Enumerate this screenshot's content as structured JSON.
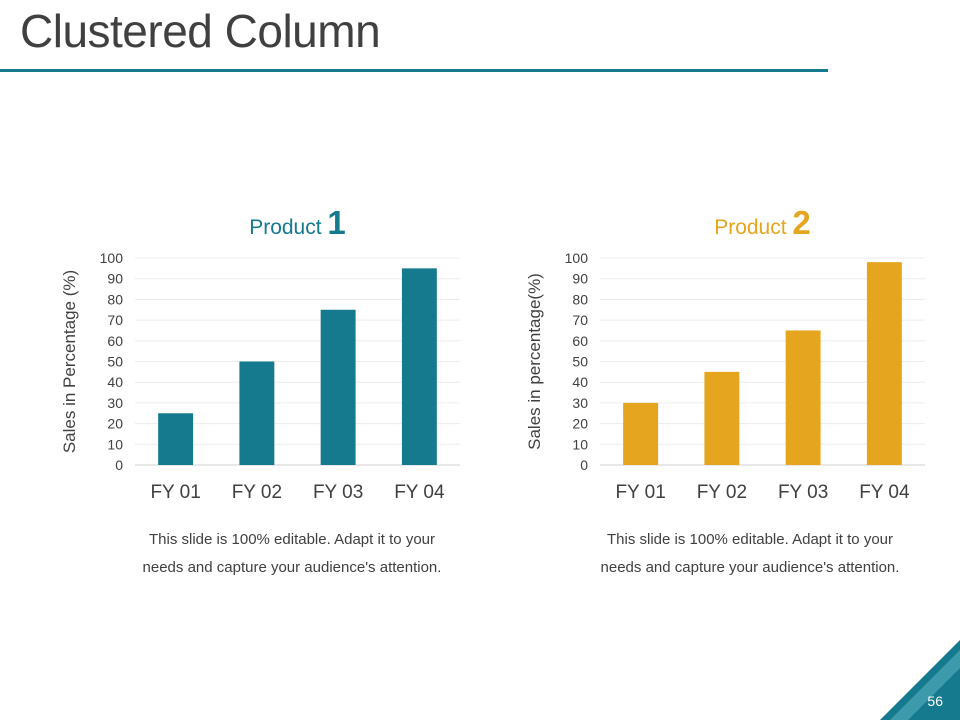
{
  "slide": {
    "title": "Clustered Column",
    "page_number": "56",
    "colors": {
      "accent": "#167a8f",
      "secondary": "#e5a51e",
      "text": "#404040"
    }
  },
  "chart_data": [
    {
      "type": "bar",
      "title_text": "Product",
      "title_number": "1",
      "color": "#167a8f",
      "categories": [
        "FY 01",
        "FY 02",
        "FY 03",
        "FY 04"
      ],
      "values": [
        25,
        50,
        75,
        95
      ],
      "ylabel": "Sales in Percentage (%)",
      "ylim": [
        0,
        100
      ],
      "yticks": [
        0,
        10,
        20,
        30,
        40,
        50,
        60,
        70,
        80,
        90,
        100
      ],
      "grid": true
    },
    {
      "type": "bar",
      "title_text": "Product",
      "title_number": "2",
      "color": "#e5a51e",
      "categories": [
        "FY 01",
        "FY 02",
        "FY 03",
        "FY 04"
      ],
      "values": [
        30,
        45,
        65,
        98
      ],
      "ylabel": "Sales in percentage(%)",
      "ylim": [
        0,
        100
      ],
      "yticks": [
        0,
        10,
        20,
        30,
        40,
        50,
        60,
        70,
        80,
        90,
        100
      ],
      "grid": true
    }
  ],
  "captions": [
    {
      "line1": "This slide is 100% editable. Adapt it to your",
      "line2": "needs and capture your audience's attention."
    },
    {
      "line1": "This slide is 100% editable. Adapt it to your",
      "line2": "needs and capture your audience's attention."
    }
  ]
}
